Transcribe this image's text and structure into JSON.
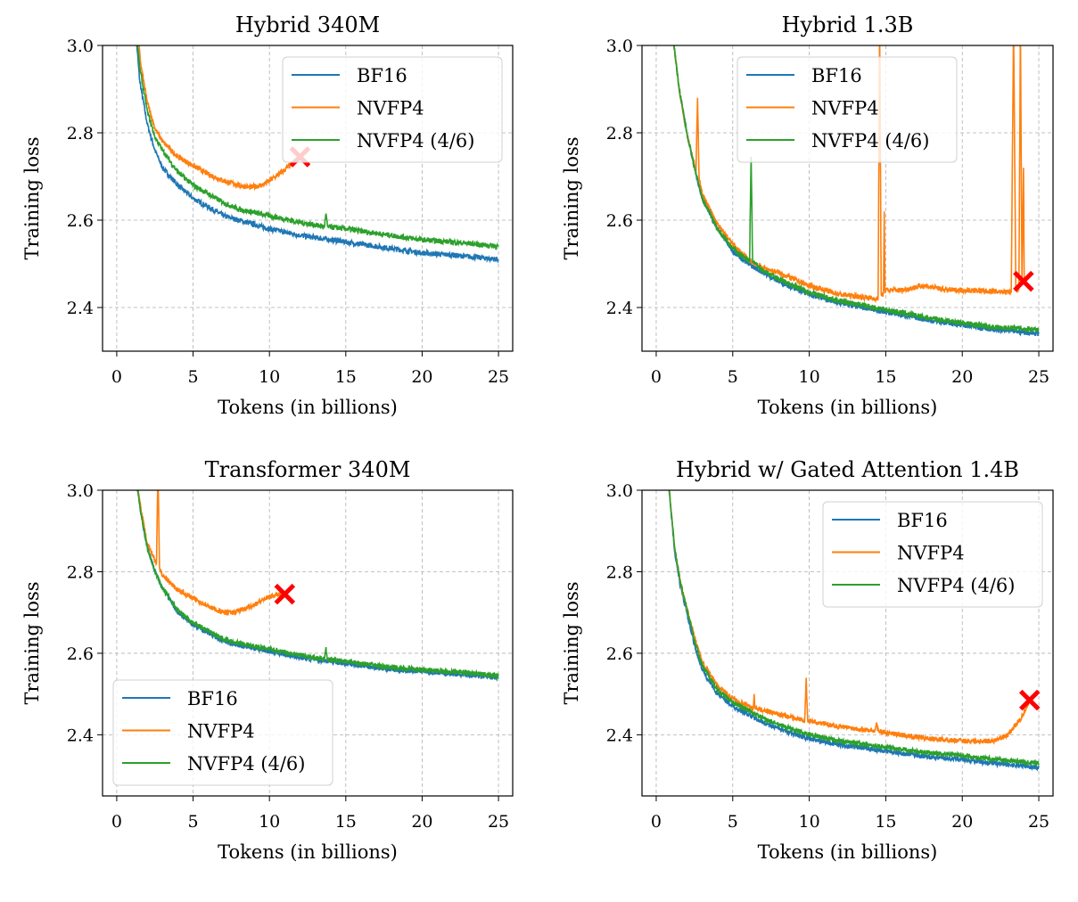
{
  "chart_data": [
    {
      "type": "line",
      "title": "Hybrid 340M",
      "xlabel": "Tokens (in billions)",
      "ylabel": "Training loss",
      "xlim": [
        -0.93,
        25.93
      ],
      "ylim": [
        2.3,
        3.0
      ],
      "xticks": [
        "0",
        "5",
        "10",
        "15",
        "20",
        "25"
      ],
      "yticks": [
        "2.4",
        "2.6",
        "2.8",
        "3.0"
      ],
      "grid": true,
      "legend": "top-right",
      "series": [
        {
          "name": "BF16",
          "color": "#1f77b4",
          "points": [
            [
              1.2,
              3.05
            ],
            [
              1.5,
              2.92
            ],
            [
              2,
              2.82
            ],
            [
              2.5,
              2.76
            ],
            [
              3,
              2.72
            ],
            [
              4,
              2.68
            ],
            [
              5,
              2.65
            ],
            [
              6,
              2.63
            ],
            [
              7,
              2.61
            ],
            [
              8,
              2.6
            ],
            [
              10,
              2.58
            ],
            [
              12,
              2.565
            ],
            [
              15,
              2.55
            ],
            [
              18,
              2.535
            ],
            [
              20,
              2.525
            ],
            [
              22,
              2.52
            ],
            [
              25,
              2.51
            ]
          ]
        },
        {
          "name": "NVFP4",
          "color": "#ff7f0e",
          "points": [
            [
              1.3,
              3.05
            ],
            [
              1.6,
              2.95
            ],
            [
              2,
              2.87
            ],
            [
              2.5,
              2.81
            ],
            [
              3,
              2.78
            ],
            [
              4,
              2.745
            ],
            [
              5,
              2.725
            ],
            [
              6,
              2.705
            ],
            [
              7,
              2.69
            ],
            [
              8,
              2.68
            ],
            [
              8.7,
              2.675
            ],
            [
              9.5,
              2.68
            ],
            [
              10,
              2.69
            ],
            [
              11,
              2.715
            ],
            [
              12,
              2.745
            ]
          ]
        },
        {
          "name": "NVFP4 (4/6)",
          "color": "#2ca02c",
          "points": [
            [
              1.25,
              3.05
            ],
            [
              1.5,
              2.95
            ],
            [
              2,
              2.85
            ],
            [
              2.5,
              2.79
            ],
            [
              3,
              2.76
            ],
            [
              4,
              2.71
            ],
            [
              5,
              2.68
            ],
            [
              6,
              2.66
            ],
            [
              7,
              2.64
            ],
            [
              8,
              2.625
            ],
            [
              10,
              2.61
            ],
            [
              12,
              2.595
            ],
            [
              13.6,
              2.585
            ],
            [
              13.7,
              2.615
            ],
            [
              13.8,
              2.585
            ],
            [
              15,
              2.58
            ],
            [
              18,
              2.565
            ],
            [
              20,
              2.555
            ],
            [
              22,
              2.55
            ],
            [
              25,
              2.54
            ]
          ]
        }
      ],
      "diverged_marker": {
        "x": 12,
        "y": 2.745,
        "color": "#ff0000",
        "faded": true
      }
    },
    {
      "type": "line",
      "title": "Hybrid 1.3B",
      "xlabel": "Tokens (in billions)",
      "ylabel": "Training loss",
      "xlim": [
        -0.93,
        25.93
      ],
      "ylim": [
        2.3,
        3.0
      ],
      "xticks": [
        "0",
        "5",
        "10",
        "15",
        "20",
        "25"
      ],
      "yticks": [
        "2.4",
        "2.6",
        "2.8",
        "3.0"
      ],
      "grid": true,
      "legend": "top-center",
      "series": [
        {
          "name": "BF16",
          "color": "#1f77b4",
          "points": [
            [
              1,
              3.05
            ],
            [
              1.5,
              2.9
            ],
            [
              2,
              2.8
            ],
            [
              2.5,
              2.72
            ],
            [
              3,
              2.65
            ],
            [
              4,
              2.58
            ],
            [
              5,
              2.53
            ],
            [
              6,
              2.5
            ],
            [
              7,
              2.48
            ],
            [
              8,
              2.46
            ],
            [
              10,
              2.43
            ],
            [
              12,
              2.41
            ],
            [
              15,
              2.39
            ],
            [
              18,
              2.37
            ],
            [
              20,
              2.36
            ],
            [
              22,
              2.35
            ],
            [
              25,
              2.34
            ]
          ]
        },
        {
          "name": "NVFP4",
          "color": "#ff7f0e",
          "points": [
            [
              1,
              3.05
            ],
            [
              1.5,
              2.9
            ],
            [
              2,
              2.8
            ],
            [
              2.6,
              2.71
            ],
            [
              2.7,
              2.88
            ],
            [
              2.8,
              2.7
            ],
            [
              3,
              2.66
            ],
            [
              4,
              2.59
            ],
            [
              5,
              2.545
            ],
            [
              6,
              2.51
            ],
            [
              7,
              2.49
            ],
            [
              8,
              2.48
            ],
            [
              10,
              2.45
            ],
            [
              12,
              2.43
            ],
            [
              14.5,
              2.42
            ],
            [
              14.6,
              3.05
            ],
            [
              14.7,
              2.43
            ],
            [
              14.85,
              2.43
            ],
            [
              14.9,
              2.62
            ],
            [
              14.95,
              2.44
            ],
            [
              16,
              2.44
            ],
            [
              17.5,
              2.45
            ],
            [
              19,
              2.44
            ],
            [
              20,
              2.44
            ],
            [
              23.2,
              2.435
            ],
            [
              23.35,
              3.05
            ],
            [
              23.5,
              2.44
            ],
            [
              23.7,
              2.44
            ],
            [
              23.8,
              3.05
            ],
            [
              23.9,
              2.45
            ],
            [
              24,
              2.72
            ],
            [
              24.05,
              2.46
            ]
          ]
        },
        {
          "name": "NVFP4 (4/6)",
          "color": "#2ca02c",
          "points": [
            [
              1,
              3.05
            ],
            [
              1.5,
              2.9
            ],
            [
              2,
              2.8
            ],
            [
              2.5,
              2.72
            ],
            [
              3,
              2.65
            ],
            [
              4,
              2.58
            ],
            [
              5,
              2.535
            ],
            [
              6.1,
              2.505
            ],
            [
              6.2,
              2.745
            ],
            [
              6.3,
              2.505
            ],
            [
              7,
              2.485
            ],
            [
              8,
              2.465
            ],
            [
              10,
              2.435
            ],
            [
              12,
              2.415
            ],
            [
              15,
              2.395
            ],
            [
              18,
              2.375
            ],
            [
              20,
              2.365
            ],
            [
              22,
              2.355
            ],
            [
              25,
              2.35
            ]
          ]
        }
      ],
      "diverged_marker": {
        "x": 24,
        "y": 2.46,
        "color": "#ff0000",
        "faded": false
      }
    },
    {
      "type": "line",
      "title": "Transformer 340M",
      "xlabel": "Tokens (in billions)",
      "ylabel": "Training loss",
      "xlim": [
        -0.93,
        25.93
      ],
      "ylim": [
        2.25,
        3.0
      ],
      "xticks": [
        "0",
        "5",
        "10",
        "15",
        "20",
        "25"
      ],
      "yticks": [
        "2.4",
        "2.6",
        "2.8",
        "3.0"
      ],
      "grid": true,
      "legend": "bottom-left",
      "series": [
        {
          "name": "BF16",
          "color": "#1f77b4",
          "points": [
            [
              1.3,
              3.02
            ],
            [
              1.6,
              2.94
            ],
            [
              2,
              2.86
            ],
            [
              2.5,
              2.8
            ],
            [
              3,
              2.76
            ],
            [
              4,
              2.7
            ],
            [
              5,
              2.67
            ],
            [
              6,
              2.65
            ],
            [
              7,
              2.63
            ],
            [
              8,
              2.62
            ],
            [
              10,
              2.605
            ],
            [
              12,
              2.59
            ],
            [
              15,
              2.575
            ],
            [
              18,
              2.56
            ],
            [
              20,
              2.555
            ],
            [
              22,
              2.55
            ],
            [
              25,
              2.54
            ]
          ]
        },
        {
          "name": "NVFP4",
          "color": "#ff7f0e",
          "points": [
            [
              1.3,
              3.02
            ],
            [
              1.6,
              2.95
            ],
            [
              2,
              2.87
            ],
            [
              2.6,
              2.82
            ],
            [
              2.7,
              3.05
            ],
            [
              2.8,
              2.81
            ],
            [
              3,
              2.79
            ],
            [
              4,
              2.755
            ],
            [
              5,
              2.735
            ],
            [
              6,
              2.715
            ],
            [
              7,
              2.7
            ],
            [
              7.6,
              2.7
            ],
            [
              8.5,
              2.71
            ],
            [
              9.5,
              2.73
            ],
            [
              10.5,
              2.745
            ],
            [
              11,
              2.745
            ]
          ]
        },
        {
          "name": "NVFP4 (4/6)",
          "color": "#2ca02c",
          "points": [
            [
              1.3,
              3.02
            ],
            [
              1.6,
              2.94
            ],
            [
              2,
              2.86
            ],
            [
              2.5,
              2.8
            ],
            [
              3,
              2.76
            ],
            [
              4,
              2.705
            ],
            [
              5,
              2.675
            ],
            [
              6,
              2.655
            ],
            [
              7,
              2.635
            ],
            [
              8,
              2.625
            ],
            [
              10,
              2.61
            ],
            [
              12,
              2.595
            ],
            [
              13.6,
              2.585
            ],
            [
              13.7,
              2.615
            ],
            [
              13.8,
              2.585
            ],
            [
              15,
              2.58
            ],
            [
              18,
              2.565
            ],
            [
              20,
              2.56
            ],
            [
              22,
              2.555
            ],
            [
              25,
              2.545
            ]
          ]
        }
      ],
      "diverged_marker": {
        "x": 11,
        "y": 2.745,
        "color": "#ff0000",
        "faded": false
      }
    },
    {
      "type": "line",
      "title": "Hybrid w/ Gated Attention 1.4B",
      "xlabel": "Tokens (in billions)",
      "ylabel": "Training loss",
      "xlim": [
        -0.93,
        25.93
      ],
      "ylim": [
        2.25,
        3.0
      ],
      "xticks": [
        "0",
        "5",
        "10",
        "15",
        "20",
        "25"
      ],
      "yticks": [
        "2.4",
        "2.6",
        "2.8",
        "3.0"
      ],
      "grid": true,
      "legend": "top-right",
      "series": [
        {
          "name": "BF16",
          "color": "#1f77b4",
          "points": [
            [
              0.8,
              3.02
            ],
            [
              1.2,
              2.85
            ],
            [
              1.6,
              2.76
            ],
            [
              2,
              2.7
            ],
            [
              2.5,
              2.62
            ],
            [
              3,
              2.56
            ],
            [
              4,
              2.5
            ],
            [
              5,
              2.47
            ],
            [
              6,
              2.45
            ],
            [
              7,
              2.43
            ],
            [
              8,
              2.415
            ],
            [
              10,
              2.39
            ],
            [
              12,
              2.375
            ],
            [
              15,
              2.36
            ],
            [
              18,
              2.345
            ],
            [
              20,
              2.34
            ],
            [
              22,
              2.33
            ],
            [
              25,
              2.32
            ]
          ]
        },
        {
          "name": "NVFP4",
          "color": "#ff7f0e",
          "points": [
            [
              0.8,
              3.02
            ],
            [
              1.2,
              2.86
            ],
            [
              1.6,
              2.77
            ],
            [
              2,
              2.71
            ],
            [
              2.5,
              2.64
            ],
            [
              3,
              2.58
            ],
            [
              4,
              2.52
            ],
            [
              5,
              2.49
            ],
            [
              6,
              2.47
            ],
            [
              6.35,
              2.465
            ],
            [
              6.4,
              2.5
            ],
            [
              6.45,
              2.465
            ],
            [
              7,
              2.46
            ],
            [
              8,
              2.45
            ],
            [
              9.7,
              2.435
            ],
            [
              9.8,
              2.54
            ],
            [
              9.9,
              2.435
            ],
            [
              12,
              2.42
            ],
            [
              14.3,
              2.41
            ],
            [
              14.4,
              2.43
            ],
            [
              14.5,
              2.41
            ],
            [
              15,
              2.405
            ],
            [
              18,
              2.39
            ],
            [
              20,
              2.385
            ],
            [
              22,
              2.385
            ],
            [
              23,
              2.4
            ],
            [
              24,
              2.45
            ],
            [
              24.4,
              2.485
            ]
          ]
        },
        {
          "name": "NVFP4 (4/6)",
          "color": "#2ca02c",
          "points": [
            [
              0.8,
              3.02
            ],
            [
              1.2,
              2.86
            ],
            [
              1.6,
              2.77
            ],
            [
              2,
              2.71
            ],
            [
              2.5,
              2.63
            ],
            [
              3,
              2.57
            ],
            [
              4,
              2.51
            ],
            [
              5,
              2.48
            ],
            [
              6,
              2.46
            ],
            [
              7,
              2.44
            ],
            [
              8,
              2.425
            ],
            [
              10,
              2.4
            ],
            [
              12,
              2.385
            ],
            [
              15,
              2.37
            ],
            [
              18,
              2.355
            ],
            [
              20,
              2.35
            ],
            [
              22,
              2.34
            ],
            [
              25,
              2.33
            ]
          ]
        }
      ],
      "diverged_marker": {
        "x": 24.4,
        "y": 2.485,
        "color": "#ff0000",
        "faded": false
      }
    }
  ]
}
